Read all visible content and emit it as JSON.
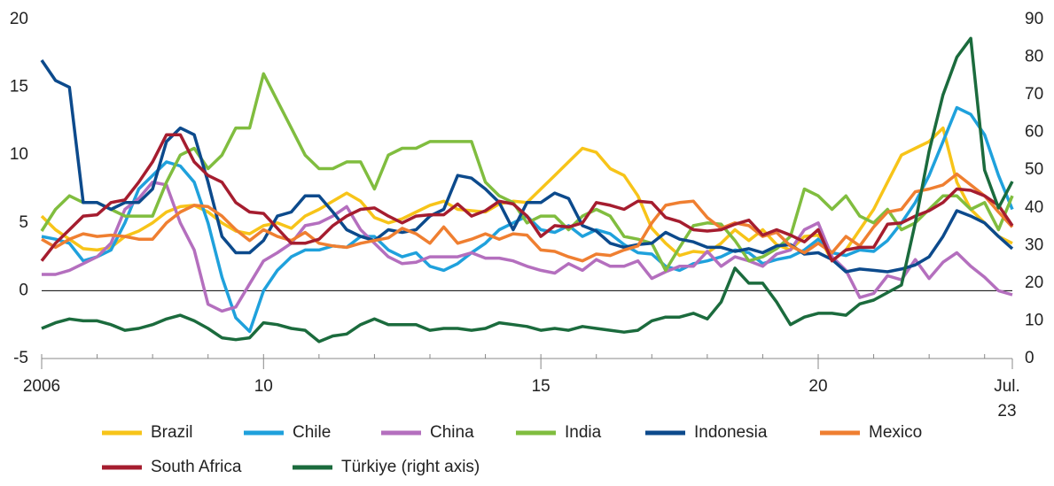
{
  "chart_data": {
    "type": "line",
    "categories": [
      "2006",
      null,
      null,
      null,
      null,
      null,
      null,
      null,
      null,
      null,
      null,
      null,
      null,
      null,
      null,
      null,
      "10",
      null,
      null,
      null,
      null,
      null,
      null,
      null,
      null,
      null,
      null,
      null,
      null,
      null,
      null,
      null,
      null,
      null,
      null,
      null,
      "15",
      null,
      null,
      null,
      null,
      null,
      null,
      null,
      null,
      null,
      null,
      null,
      null,
      null,
      null,
      null,
      null,
      null,
      null,
      null,
      "20",
      null,
      null,
      null,
      null,
      null,
      null,
      null,
      null,
      null,
      null,
      null,
      null,
      null,
      "Jul. 23"
    ],
    "ylim": [
      -5,
      20
    ],
    "yticks": [
      -5,
      0,
      5,
      10,
      15,
      20
    ],
    "y2lim": [
      0,
      90
    ],
    "y2ticks": [
      0,
      10,
      20,
      30,
      40,
      50,
      60,
      70,
      80,
      90
    ],
    "series": [
      {
        "name": "Brazil",
        "color": "#f7c419",
        "values": [
          5.5,
          4.5,
          3.8,
          3.1,
          3,
          3.2,
          4,
          4.4,
          5,
          5.8,
          6.2,
          6.3,
          5.8,
          5,
          4.4,
          4.2,
          4.8,
          5,
          4.6,
          5.5,
          6,
          6.6,
          7.2,
          6.6,
          5.4,
          5,
          5.3,
          5.8,
          6.3,
          6.6,
          6,
          5.9,
          5.8,
          6.4,
          6.6,
          6.5,
          7.5,
          8.5,
          9.5,
          10.5,
          10.2,
          9,
          8.5,
          7,
          4.6,
          3.5,
          2.6,
          2.9,
          2.8,
          3.5,
          4.5,
          3.7,
          4.5,
          3.4,
          3,
          4,
          4.1,
          2.2,
          3,
          4.5,
          6,
          8,
          10,
          10.5,
          11,
          12,
          8,
          6,
          5,
          4,
          3.5
        ]
      },
      {
        "name": "Chile",
        "color": "#1fa1dc",
        "values": [
          4,
          3.8,
          3.5,
          2.2,
          2.5,
          3,
          5,
          7.5,
          8.5,
          9.5,
          9.2,
          8,
          5,
          1,
          -2,
          -3,
          0,
          1.5,
          2.5,
          3,
          3,
          3.3,
          3.2,
          4,
          4,
          3,
          2.5,
          2.8,
          1.8,
          1.5,
          2,
          2.8,
          3.5,
          4.5,
          5,
          5.5,
          4.5,
          4.3,
          4.8,
          4,
          4.5,
          4.2,
          3.4,
          2.8,
          2.7,
          1.8,
          1.5,
          2,
          2.2,
          2.5,
          3,
          2.8,
          2,
          2.3,
          2.5,
          3,
          3.8,
          2.8,
          2.6,
          3,
          2.9,
          3.7,
          5,
          6.5,
          8.5,
          11,
          13.5,
          13,
          11.5,
          8.5,
          6
        ]
      },
      {
        "name": "China",
        "color": "#b46fbe",
        "values": [
          1.2,
          1.2,
          1.5,
          2,
          2.5,
          3.5,
          6,
          6.8,
          8,
          7.8,
          5,
          3,
          -1,
          -1.5,
          -1.2,
          0.5,
          2.2,
          2.8,
          3.5,
          4.8,
          5,
          5.5,
          6.2,
          4.5,
          3.5,
          2.5,
          2,
          2.1,
          2.5,
          2.5,
          2.5,
          2.8,
          2.4,
          2.4,
          2.2,
          1.8,
          1.5,
          1.3,
          2,
          1.5,
          2.3,
          1.8,
          1.8,
          2.2,
          0.9,
          1.4,
          1.8,
          1.8,
          2.9,
          1.8,
          2.5,
          2.2,
          1.8,
          2.7,
          3,
          4.5,
          5,
          2.5,
          1.5,
          -0.5,
          -0.2,
          1.1,
          0.8,
          2.3,
          0.9,
          2.1,
          2.8,
          1.8,
          1,
          0,
          -0.3
        ]
      },
      {
        "name": "India",
        "color": "#80bd3f",
        "values": [
          4.4,
          6,
          7,
          6.5,
          6.5,
          6,
          5.5,
          5.5,
          5.5,
          8,
          10,
          10.5,
          9,
          10,
          12,
          12,
          16,
          14,
          12,
          10,
          9,
          9,
          9.5,
          9.5,
          7.5,
          10,
          10.5,
          10.5,
          11,
          11,
          11,
          11,
          8,
          7,
          6.5,
          5,
          5.5,
          5.5,
          4.5,
          5.5,
          6,
          5.5,
          4,
          3.8,
          3.5,
          1.5,
          3.2,
          4.8,
          5,
          4.9,
          3.7,
          2.2,
          2.5,
          3.1,
          4,
          7.5,
          7,
          6,
          7,
          5.5,
          5,
          6,
          4.5,
          5,
          6,
          7,
          7,
          6,
          6.5,
          4.5,
          7
        ]
      },
      {
        "name": "Indonesia",
        "color": "#0c4a8c",
        "values": [
          17,
          15.5,
          15,
          6.5,
          6.5,
          6,
          6.5,
          6.5,
          7.5,
          11,
          12,
          11.5,
          8,
          4,
          2.8,
          2.8,
          3.7,
          5.5,
          5.8,
          7,
          7,
          5.8,
          4.5,
          4,
          3.7,
          4.5,
          4.3,
          4.5,
          5.5,
          6,
          8.5,
          8.3,
          7.5,
          6.5,
          4.5,
          6.5,
          6.5,
          7.2,
          6.8,
          4.8,
          4.4,
          3.5,
          3.2,
          3.4,
          3.5,
          4.3,
          3.8,
          3.6,
          3.2,
          3.2,
          2.9,
          3.1,
          2.8,
          3.3,
          3.4,
          2.7,
          2.8,
          2.3,
          1.4,
          1.6,
          1.5,
          1.4,
          1.6,
          1.9,
          2.5,
          4,
          5.9,
          5.5,
          5,
          4,
          3.1
        ]
      },
      {
        "name": "Mexico",
        "color": "#ef7f31",
        "values": [
          3.8,
          3.2,
          3.8,
          4.2,
          4,
          4.1,
          4,
          3.8,
          3.8,
          5,
          5.8,
          6.3,
          6.2,
          5.5,
          4.5,
          3.7,
          4.5,
          4,
          3.7,
          4.3,
          3.5,
          3.3,
          3.2,
          3.5,
          3.7,
          3.9,
          4.6,
          4.2,
          3.5,
          4.7,
          3.5,
          3.8,
          4.2,
          3.8,
          4.2,
          4.1,
          3,
          2.9,
          2.5,
          2.2,
          2.7,
          2.6,
          3,
          3.3,
          5,
          6.3,
          6.5,
          6.6,
          5.4,
          4.6,
          5,
          4.8,
          4,
          4.3,
          3.3,
          2.8,
          3.5,
          2.8,
          4,
          3.3,
          4.7,
          5.8,
          6,
          7.3,
          7.5,
          7.8,
          8.6,
          7.8,
          7,
          5.8,
          4.7
        ]
      },
      {
        "name": "South Africa",
        "color": "#a51d2f",
        "values": [
          2.2,
          3.5,
          4.5,
          5.5,
          5.6,
          6.5,
          6.7,
          8,
          9.5,
          11.5,
          11.5,
          9.5,
          8.5,
          8,
          6.5,
          5.8,
          5.7,
          4.6,
          3.5,
          3.5,
          3.8,
          4.8,
          5.5,
          6,
          6.1,
          5.5,
          5,
          5.5,
          5.6,
          5.6,
          6.4,
          5.5,
          5.9,
          6.6,
          6.4,
          5.5,
          4,
          4.8,
          4.7,
          5,
          6.5,
          6.3,
          6,
          6.6,
          6.5,
          5.4,
          5.1,
          4.5,
          4.4,
          4.5,
          4.9,
          5.2,
          4.1,
          4.5,
          4.1,
          3.6,
          4.5,
          2.2,
          3,
          3.2,
          3.2,
          4.9,
          5,
          5.5,
          5.9,
          6.5,
          7.5,
          7.4,
          7,
          6.3,
          4.8
        ]
      },
      {
        "name": "Türkiye (right axis)",
        "color": "#1b6b3d",
        "axis": "y2",
        "values": [
          8,
          9.5,
          10.5,
          10,
          10,
          9,
          7.5,
          8,
          9,
          10.5,
          11.5,
          10,
          8,
          5.5,
          5,
          5.5,
          9.5,
          9,
          8,
          7.5,
          4.5,
          6,
          6.5,
          9,
          10.5,
          9,
          9,
          9,
          7.5,
          8,
          8,
          7.5,
          8,
          9.5,
          9,
          8.5,
          7.5,
          8,
          7.5,
          8.5,
          8,
          7.5,
          7,
          7.5,
          10,
          11,
          11,
          12,
          10.5,
          15,
          24,
          20,
          20,
          15,
          9,
          11,
          12,
          12,
          11.5,
          14.5,
          15.5,
          17.5,
          19.5,
          36,
          55,
          70,
          80,
          85,
          50,
          40,
          47
        ]
      }
    ]
  }
}
